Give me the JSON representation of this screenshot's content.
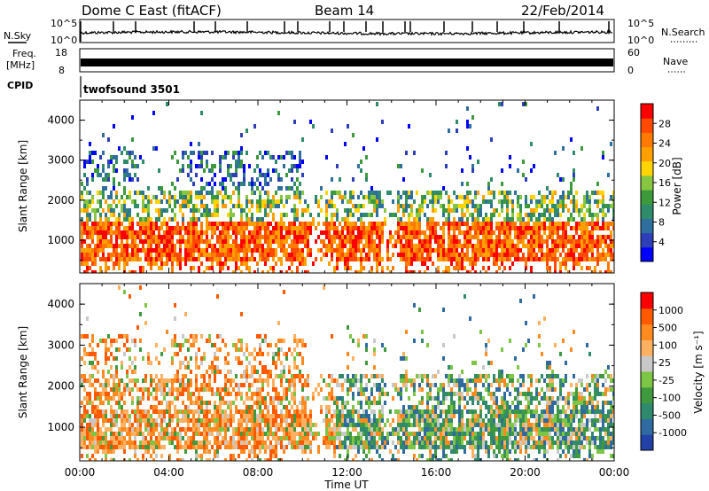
{
  "header": {
    "station": "Dome C East (fitACF)",
    "beam": "Beam 14",
    "date": "22/Feb/2014"
  },
  "noise_panel": {
    "left_label": "N.Sky",
    "left_ticks": [
      "10^5",
      "10^0"
    ],
    "right_ticks": [
      "10^5",
      "10^0"
    ],
    "right_label": "N.Search"
  },
  "freq_panel": {
    "left_label_1": "Freq.",
    "left_label_2": "[MHz]",
    "left_ticks": [
      "18",
      "8"
    ],
    "right_ticks": [
      "60",
      "0"
    ],
    "right_label": "Nave"
  },
  "cpid_panel": {
    "label": "CPID",
    "program": "twofsound 3501"
  },
  "chart_data": [
    {
      "type": "heatmap",
      "name": "power",
      "ylabel": "Slant Range [km]",
      "ylim": [
        180,
        4500
      ],
      "yticks": [
        "4000",
        "3000",
        "2000",
        "1000"
      ],
      "xlim": [
        0,
        24
      ],
      "colorbar": {
        "label": "Power [dB]",
        "ticks": [
          "28",
          "24",
          "20",
          "16",
          "12",
          "8",
          "4"
        ],
        "range": [
          0,
          32
        ],
        "colors": [
          "#0000ff",
          "#2d3fb8",
          "#2e6f9e",
          "#2f8c6b",
          "#3d9a3b",
          "#86c640",
          "#ffd400",
          "#ffa000",
          "#ff7a00",
          "#ff4a00",
          "#ff0000"
        ]
      }
    },
    {
      "type": "heatmap",
      "name": "velocity",
      "ylabel": "Slant Range [km]",
      "ylim": [
        180,
        4500
      ],
      "yticks": [
        "4000",
        "3000",
        "2000",
        "1000"
      ],
      "xlim": [
        0,
        24
      ],
      "xticks": [
        "00:00",
        "04:00",
        "08:00",
        "12:00",
        "16:00",
        "20:00",
        "00:00"
      ],
      "xlabel": "Time UT",
      "colorbar": {
        "label": "Velocity [m s⁻¹]",
        "ticks": [
          "1000",
          "500",
          "100",
          "25",
          "-25",
          "-100",
          "-500",
          "-1000"
        ],
        "colors": [
          "#2242a8",
          "#2f6aa0",
          "#2f8a6e",
          "#3f9a3f",
          "#7cc545",
          "#c8c8c8",
          "#ffb060",
          "#ff8a20",
          "#ff5a00",
          "#ff0000"
        ]
      }
    }
  ]
}
